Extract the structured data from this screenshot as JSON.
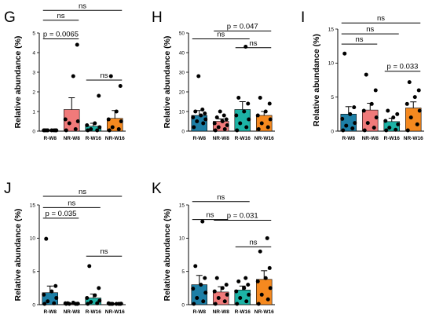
{
  "colors": {
    "R-W8": "#1d7fa6",
    "NR-W8": "#f07a7a",
    "R-W16": "#1db3a6",
    "NR-W16": "#f5891f",
    "points": "#000000",
    "errorbar": "#000000"
  },
  "chart_data": [
    {
      "panel": "G",
      "type": "bar",
      "ylabel": "Relative abundance (%)",
      "categories": [
        "R-W8",
        "NR-W8",
        "R-W16",
        "NR-W16"
      ],
      "ylim": [
        0,
        5
      ],
      "yticks": [
        0,
        1,
        2,
        3,
        4,
        5
      ],
      "bars": [
        {
          "mean": 0.02,
          "sem": 0.02,
          "points": [
            0,
            0.02,
            0.03,
            0.01,
            0.04,
            0.02,
            0.03,
            0.01
          ]
        },
        {
          "mean": 1.1,
          "sem": 0.6,
          "points": [
            0,
            0.1,
            0.4,
            0.5,
            0.6,
            2.8,
            4.4
          ]
        },
        {
          "mean": 0.25,
          "sem": 0.15,
          "points": [
            0,
            0.02,
            0.1,
            0.2,
            0.3,
            0.4,
            1.8
          ]
        },
        {
          "mean": 0.65,
          "sem": 0.4,
          "points": [
            0,
            0.1,
            0.2,
            0.5,
            0.6,
            1.0,
            2.3,
            2.8
          ]
        }
      ],
      "comparisons": [
        {
          "from": 0,
          "to": 1,
          "label": "p = 0.0065",
          "y": 4.7
        },
        {
          "from": 0,
          "to": 1,
          "label": "ns",
          "y": 5.65
        },
        {
          "from": 0,
          "to": 3,
          "label": "ns",
          "y": 6.15
        },
        {
          "from": 2,
          "to": 3,
          "label": "ns",
          "y": 2.6
        }
      ]
    },
    {
      "panel": "H",
      "type": "bar",
      "ylabel": "Relative abundance (%)",
      "categories": [
        "R-W8",
        "NR-W8",
        "R-W16",
        "NR-W16"
      ],
      "ylim": [
        0,
        50
      ],
      "yticks": [
        0,
        10,
        20,
        30,
        40,
        50
      ],
      "bars": [
        {
          "mean": 8,
          "sem": 2.5,
          "points": [
            2,
            4,
            5,
            6,
            7,
            8,
            9,
            10,
            11,
            28
          ]
        },
        {
          "mean": 5,
          "sem": 1.2,
          "points": [
            0,
            1,
            2,
            3,
            4,
            5,
            6,
            7,
            8,
            10
          ]
        },
        {
          "mean": 11,
          "sem": 4,
          "points": [
            0,
            2,
            4,
            6,
            8,
            10,
            14,
            17,
            43
          ]
        },
        {
          "mean": 8,
          "sem": 2,
          "points": [
            1,
            2,
            4,
            6,
            8,
            10,
            14,
            17
          ]
        }
      ],
      "comparisons": [
        {
          "from": 1,
          "to": 3,
          "label": "p = 0.047",
          "y": 51
        },
        {
          "from": 0,
          "to": 2,
          "label": "ns",
          "y": 47
        },
        {
          "from": 2,
          "to": 3,
          "label": "ns",
          "y": 42.5
        }
      ]
    },
    {
      "panel": "I",
      "type": "bar",
      "ylabel": "Relative abundance (%)",
      "categories": [
        "R-W8",
        "NR-W8",
        "R-W16",
        "NR-W16"
      ],
      "ylim": [
        0,
        15
      ],
      "yticks": [
        0,
        5,
        10,
        15
      ],
      "bars": [
        {
          "mean": 2.5,
          "sem": 1.1,
          "points": [
            0,
            0.4,
            0.8,
            1.2,
            1.8,
            2.5,
            3.5,
            11.4
          ]
        },
        {
          "mean": 3.1,
          "sem": 1.0,
          "points": [
            0,
            0.5,
            1.2,
            2,
            3,
            4,
            6,
            8.3
          ]
        },
        {
          "mean": 1.4,
          "sem": 0.5,
          "points": [
            0,
            0.2,
            0.5,
            1,
            1.5,
            2,
            2.5,
            3
          ]
        },
        {
          "mean": 3.4,
          "sem": 0.9,
          "points": [
            0,
            1,
            2,
            3,
            4,
            5,
            6,
            7.2
          ]
        }
      ],
      "comparisons": [
        {
          "from": 0,
          "to": 3,
          "label": "ns",
          "y": 15.9
        },
        {
          "from": 0,
          "to": 2,
          "label": "ns",
          "y": 14.3
        },
        {
          "from": 0,
          "to": 1,
          "label": "ns",
          "y": 12.8
        },
        {
          "from": 2,
          "to": 3,
          "label": "p = 0.033",
          "y": 8.8
        }
      ]
    },
    {
      "panel": "J",
      "type": "bar",
      "ylabel": "Relative abundance (%)",
      "categories": [
        "R-W8",
        "NR-W8",
        "R-W16",
        "NR-W16"
      ],
      "ylim": [
        0,
        15
      ],
      "yticks": [
        0,
        5,
        10,
        15
      ],
      "bars": [
        {
          "mean": 1.8,
          "sem": 1.0,
          "points": [
            0,
            0.2,
            0.5,
            1,
            1.5,
            2,
            2.8,
            9.9
          ]
        },
        {
          "mean": 0.1,
          "sem": 0.05,
          "points": [
            0,
            0.05,
            0.1,
            0.15,
            0.2,
            0.3,
            0.1,
            0.2
          ]
        },
        {
          "mean": 1.0,
          "sem": 0.6,
          "points": [
            0,
            0.2,
            0.4,
            0.6,
            1,
            1.4,
            2.5,
            5.8
          ]
        },
        {
          "mean": 0.1,
          "sem": 0.05,
          "points": [
            0,
            0.05,
            0.1,
            0.15,
            0.2,
            0.1,
            0.05,
            0.1
          ]
        }
      ],
      "comparisons": [
        {
          "from": 0,
          "to": 3,
          "label": "ns",
          "y": 16.3
        },
        {
          "from": 0,
          "to": 2,
          "label": "ns",
          "y": 14.6
        },
        {
          "from": 0,
          "to": 1,
          "label": "p = 0.035",
          "y": 13.0
        },
        {
          "from": 2,
          "to": 3,
          "label": "ns",
          "y": 7.3
        }
      ]
    },
    {
      "panel": "K",
      "type": "bar",
      "ylabel": "Relative abundance (%)",
      "categories": [
        "R-W8",
        "NR-W8",
        "R-W16",
        "NR-W16"
      ],
      "ylim": [
        0,
        15
      ],
      "yticks": [
        0,
        5,
        10,
        15
      ],
      "bars": [
        {
          "mean": 3.0,
          "sem": 1.4,
          "points": [
            0,
            0.5,
            1,
            1.8,
            2.4,
            3,
            4,
            5.8,
            12.5
          ]
        },
        {
          "mean": 1.9,
          "sem": 0.8,
          "points": [
            0,
            0.5,
            1,
            1.5,
            2,
            2.5,
            3,
            4
          ]
        },
        {
          "mean": 2.2,
          "sem": 0.6,
          "points": [
            0,
            0.5,
            1,
            1.5,
            2,
            2.5,
            3,
            3.5,
            4
          ]
        },
        {
          "mean": 3.8,
          "sem": 1.3,
          "points": [
            0,
            0.8,
            1.5,
            2.5,
            3.5,
            4,
            5.5,
            8,
            10
          ]
        }
      ],
      "comparisons": [
        {
          "from": 0,
          "to": 2,
          "label": "ns",
          "y": 15.5
        },
        {
          "from": 0,
          "to": 1,
          "label": "ns",
          "y": 12.8
        },
        {
          "from": 1,
          "to": 3,
          "label": "p = 0.031",
          "y": 12.7
        },
        {
          "from": 2,
          "to": 3,
          "label": "ns",
          "y": 8.7
        }
      ]
    }
  ]
}
